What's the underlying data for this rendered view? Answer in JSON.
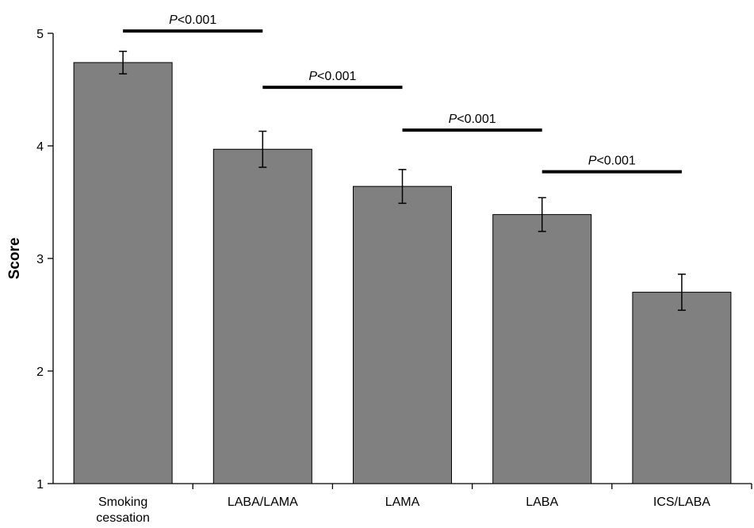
{
  "chart_data": {
    "type": "bar",
    "title": "",
    "xlabel": "",
    "ylabel": "Score",
    "ylim": [
      1,
      5
    ],
    "yticks": [
      "1",
      "2",
      "3",
      "4",
      "5"
    ],
    "categories": [
      [
        "Smoking",
        "cessation"
      ],
      [
        "LABA/LAMA"
      ],
      [
        "LAMA"
      ],
      [
        "LABA"
      ],
      [
        "ICS/LABA"
      ]
    ],
    "values": [
      4.74,
      3.97,
      3.64,
      3.39,
      2.7
    ],
    "error": [
      0.1,
      0.16,
      0.15,
      0.15,
      0.16
    ],
    "comparisons": [
      {
        "from": 0,
        "to": 1,
        "p_prefix": "P",
        "p_rest": "<0.001",
        "y": 5.02
      },
      {
        "from": 1,
        "to": 2,
        "p_prefix": "P",
        "p_rest": "<0.001",
        "y": 4.52
      },
      {
        "from": 2,
        "to": 3,
        "p_prefix": "P",
        "p_rest": "<0.001",
        "y": 4.14
      },
      {
        "from": 3,
        "to": 4,
        "p_prefix": "P",
        "p_rest": "<0.001",
        "y": 3.77
      }
    ],
    "colors": {
      "bar": "#808080",
      "bar_stroke": "#000000",
      "axis": "#000000"
    },
    "grid": false,
    "legend": "none"
  }
}
